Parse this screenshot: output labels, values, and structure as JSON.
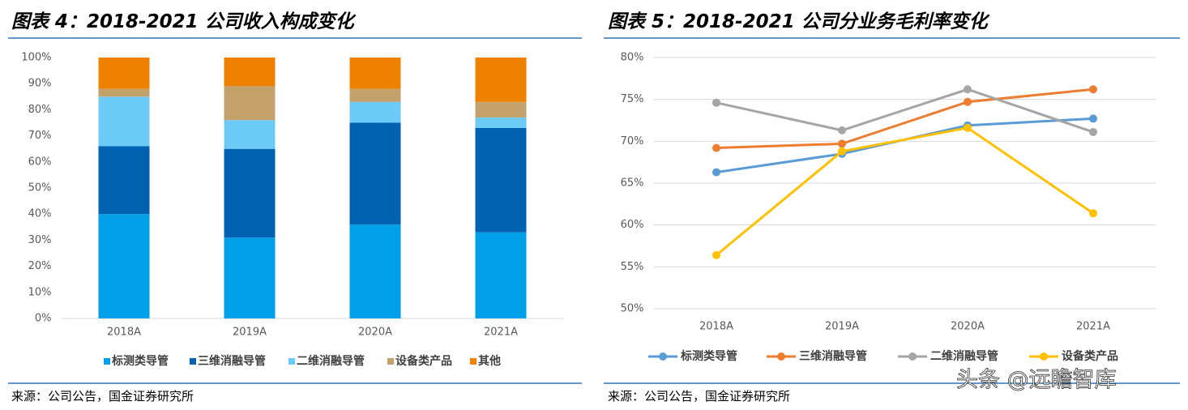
{
  "chart_data": [
    {
      "type": "stacked_bar",
      "title": "图表 4：2018-2021 公司收入构成变化",
      "source": "来源：公司公告，国金证券研究所",
      "categories": [
        "2018A",
        "2019A",
        "2020A",
        "2021A"
      ],
      "series": [
        {
          "name": "标测类导管",
          "color": "#00a0e9",
          "values": [
            40,
            31,
            36,
            33
          ]
        },
        {
          "name": "三维消融导管",
          "color": "#0062b0",
          "values": [
            26,
            34,
            39,
            40
          ]
        },
        {
          "name": "二维消融导管",
          "color": "#6ccaf6",
          "values": [
            19,
            11,
            8,
            4
          ]
        },
        {
          "name": "设备类产品",
          "color": "#c2a26a",
          "values": [
            3,
            13,
            5,
            6
          ]
        },
        {
          "name": "其他",
          "color": "#ee8100",
          "values": [
            12,
            11,
            12,
            17
          ]
        }
      ],
      "ylim": [
        0,
        100
      ],
      "yticks": [
        {
          "value": 0,
          "label": "0%"
        },
        {
          "value": 10,
          "label": "10%"
        },
        {
          "value": 20,
          "label": "20%"
        },
        {
          "value": 30,
          "label": "30%"
        },
        {
          "value": 40,
          "label": "40%"
        },
        {
          "value": 50,
          "label": "50%"
        },
        {
          "value": 60,
          "label": "60%"
        },
        {
          "value": 70,
          "label": "70%"
        },
        {
          "value": 80,
          "label": "80%"
        },
        {
          "value": 90,
          "label": "90%"
        },
        {
          "value": 100,
          "label": "100%"
        }
      ],
      "grid": false
    },
    {
      "type": "line",
      "title": "图表 5：2018-2021 公司分业务毛利率变化",
      "source": "来源：公司公告，国金证券研究所",
      "categories": [
        "2018A",
        "2019A",
        "2020A",
        "2021A"
      ],
      "series": [
        {
          "name": "标测类导管",
          "color": "#5b9bd5",
          "values": [
            66.3,
            68.5,
            71.9,
            72.7
          ]
        },
        {
          "name": "三维消融导管",
          "color": "#ed7d31",
          "values": [
            69.2,
            69.7,
            74.7,
            76.2
          ]
        },
        {
          "name": "二维消融导管",
          "color": "#a5a5a5",
          "values": [
            74.6,
            71.3,
            76.2,
            71.1
          ]
        },
        {
          "name": "设备类产品",
          "color": "#ffc000",
          "values": [
            56.4,
            68.8,
            71.6,
            61.4
          ]
        }
      ],
      "ylim": [
        50,
        80
      ],
      "yticks": [
        {
          "value": 50,
          "label": "50%"
        },
        {
          "value": 55,
          "label": "55%"
        },
        {
          "value": 60,
          "label": "60%"
        },
        {
          "value": 65,
          "label": "65%"
        },
        {
          "value": 70,
          "label": "70%"
        },
        {
          "value": 75,
          "label": "75%"
        },
        {
          "value": 80,
          "label": "80%"
        }
      ],
      "grid": true
    }
  ],
  "watermark": "头条 @远瞻智库"
}
